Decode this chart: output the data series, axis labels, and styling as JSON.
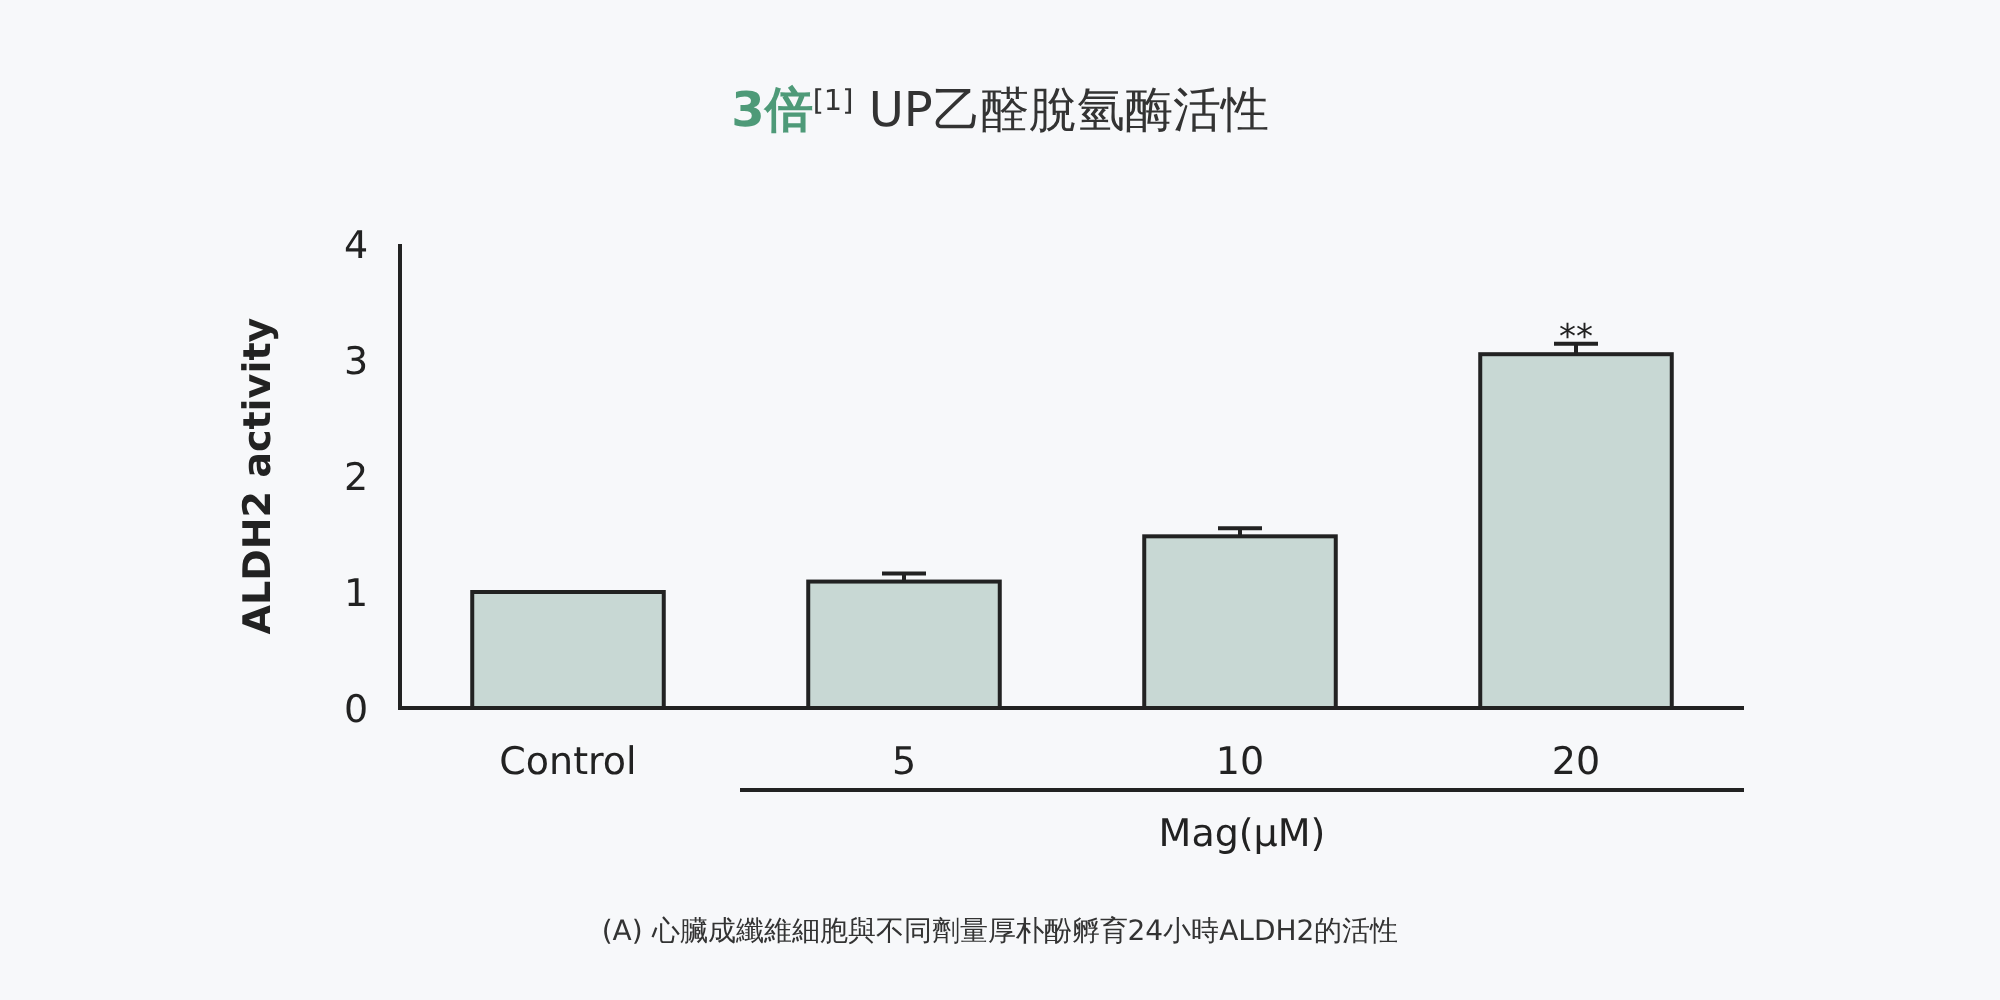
{
  "chart_data": {
    "type": "bar",
    "title": "**3倍**$^{[1]}$ UP乙醛脫氫酶活性",
    "categories": [
      "Control",
      "5",
      "10",
      "20"
    ],
    "values": [
      1.0,
      1.09,
      1.48,
      3.05
    ],
    "errors": [
      null,
      0.07,
      0.07,
      0.09
    ],
    "color": "#c8d8d4",
    "xlabel": "Mag(μM)",
    "ylabel": "ALDH2 activity",
    "ylim": [
      0,
      4
    ],
    "yticks": [
      0,
      1,
      2,
      3,
      4
    ],
    "annotations": [
      {
        "text": "**",
        "x": "20",
        "y": 3.14
      },
      "(A) 心臟成纖維細胞與不同劑量厚朴酚孵育24小時ALDH2的活性"
    ]
  }
}
